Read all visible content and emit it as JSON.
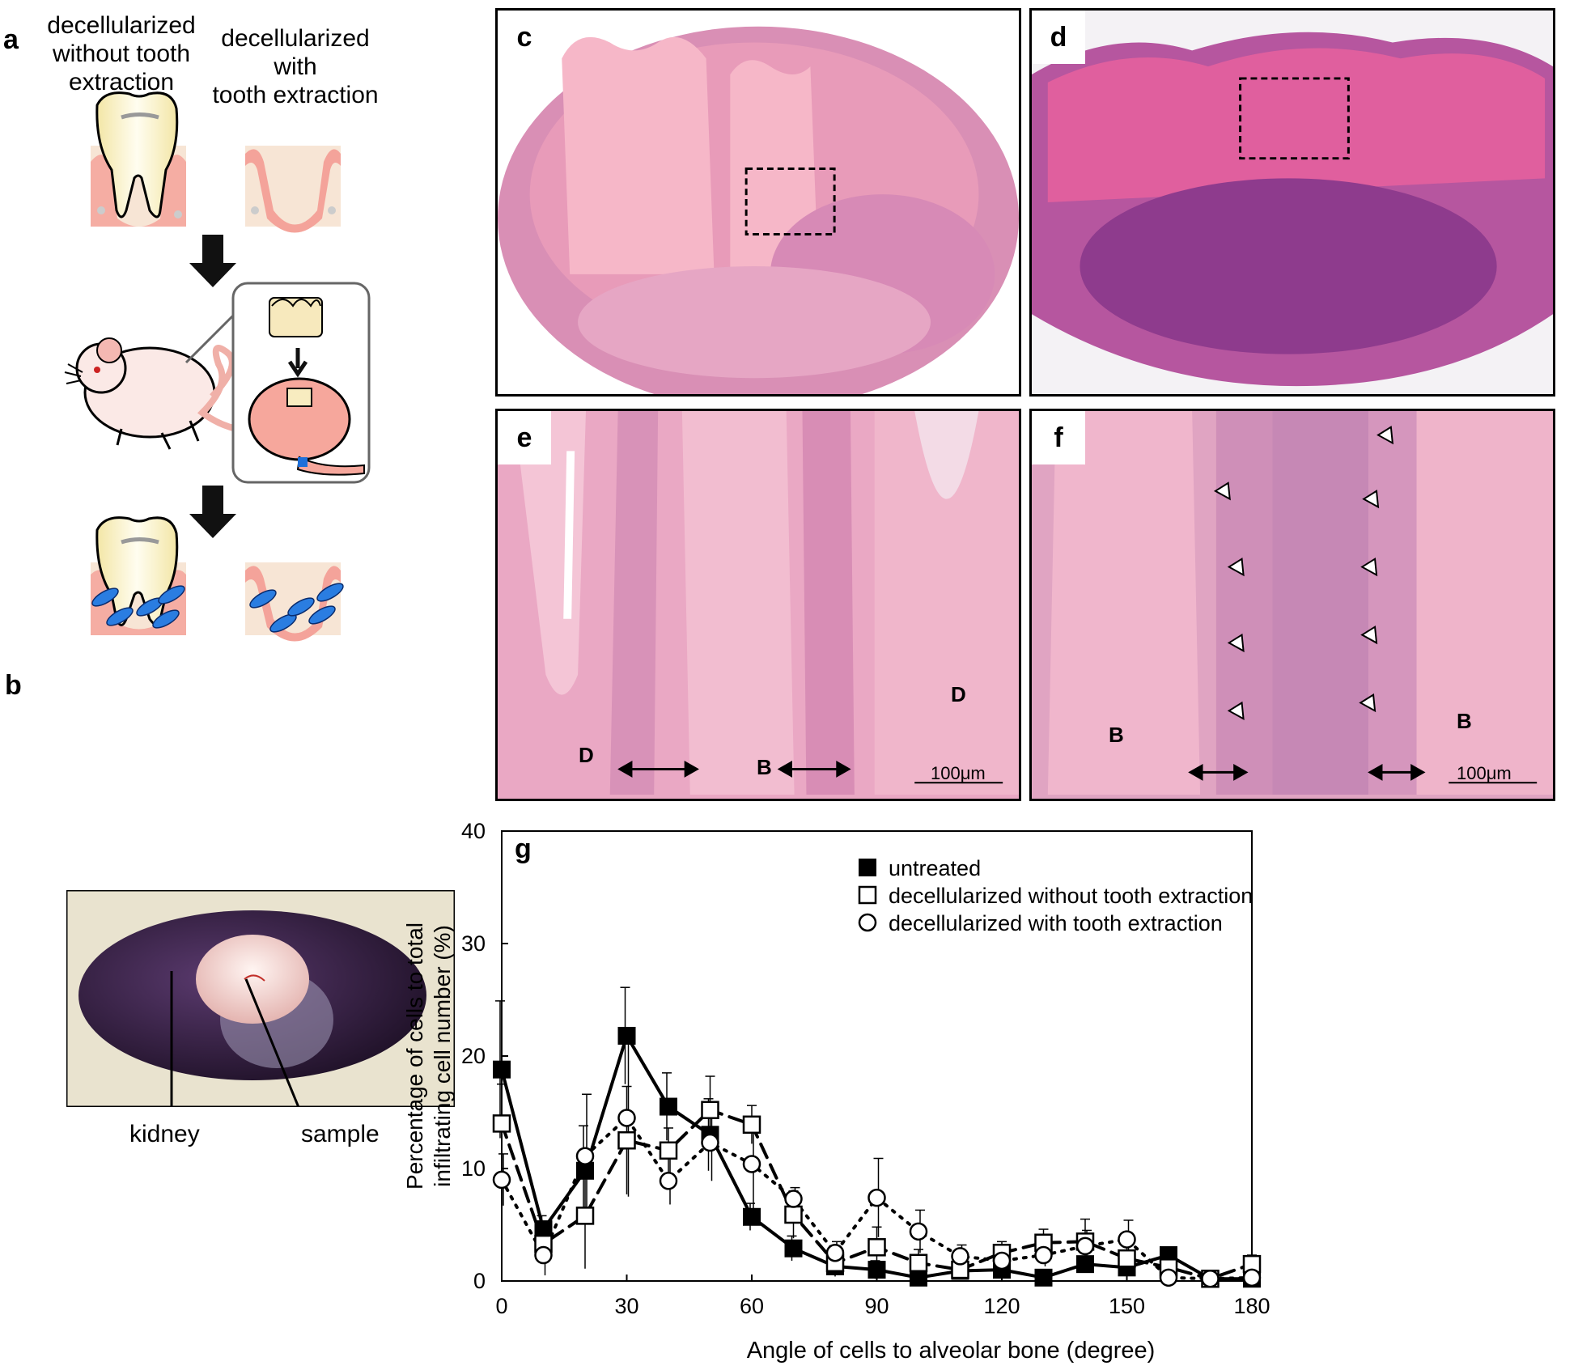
{
  "panel_a": {
    "letter": "a",
    "header_left_lines": [
      "decellularized",
      "without tooth",
      "extraction"
    ],
    "header_right_lines": [
      "decellularized with",
      "tooth extraction"
    ]
  },
  "panel_b": {
    "letter": "b",
    "label_kidney": "kidney",
    "label_sample": "sample"
  },
  "panel_c": {
    "letter": "c"
  },
  "panel_d": {
    "letter": "d"
  },
  "panel_e": {
    "letter": "e",
    "labels": {
      "d1": "D",
      "d2": "D",
      "b": "B"
    },
    "scale": "100μm"
  },
  "panel_f": {
    "letter": "f",
    "labels": {
      "b1": "B",
      "b2": "B"
    },
    "scale": "100μm"
  },
  "panel_g": {
    "letter": "g",
    "chart_data": {
      "type": "line",
      "xlabel": "Angle of cells to alveolar bone (degree)",
      "ylabel_lines": [
        "Percentage of cells to total",
        "infiltrating cell number (%)"
      ],
      "xlim": [
        0,
        180
      ],
      "ylim": [
        0,
        40
      ],
      "xticks": [
        0,
        30,
        60,
        90,
        120,
        150,
        180
      ],
      "yticks": [
        0,
        10,
        20,
        30,
        40
      ],
      "x": [
        0,
        10,
        20,
        30,
        40,
        50,
        60,
        70,
        80,
        90,
        100,
        110,
        120,
        130,
        140,
        150,
        160,
        170,
        180
      ],
      "legend_position": "top-right",
      "series": [
        {
          "name": "untreated",
          "marker": "filled-square",
          "line_style": "solid",
          "values": [
            18.8,
            4.6,
            9.8,
            21.8,
            15.5,
            13.0,
            5.7,
            2.9,
            1.3,
            1.0,
            0.3,
            0.9,
            1.0,
            0.3,
            1.5,
            1.2,
            2.3,
            0.2,
            0.2
          ],
          "errors": [
            6.1,
            1.2,
            4.0,
            4.3,
            3.0,
            3.2,
            1.2,
            1.1,
            0.8,
            0.8,
            0.3,
            0.6,
            0.7,
            0.3,
            0.7,
            0.6,
            0.6,
            0.2,
            0.2
          ]
        },
        {
          "name": "decellularized without tooth extraction",
          "marker": "open-square",
          "line_style": "dashed",
          "values": [
            14.0,
            3.3,
            5.8,
            12.5,
            11.6,
            15.2,
            13.9,
            5.9,
            1.6,
            3.0,
            1.6,
            1.0,
            2.5,
            3.4,
            3.5,
            2.0,
            1.2,
            0.2,
            1.5
          ],
          "errors": [
            3.5,
            1.5,
            4.7,
            4.8,
            2.0,
            3.0,
            1.7,
            2.1,
            1.2,
            1.8,
            1.2,
            0.6,
            1.0,
            1.2,
            2.0,
            1.5,
            0.8,
            0.2,
            0.8
          ]
        },
        {
          "name": "decellularized with tooth extraction",
          "marker": "open-circle",
          "line_style": "dotted",
          "values": [
            9.0,
            2.3,
            11.1,
            14.5,
            8.9,
            12.3,
            10.4,
            7.3,
            2.5,
            7.4,
            4.4,
            2.2,
            1.8,
            2.3,
            3.1,
            3.7,
            0.3,
            0.2,
            0.3
          ],
          "errors": [
            2.3,
            1.8,
            5.5,
            7.0,
            2.1,
            3.4,
            4.0,
            1.0,
            1.0,
            3.5,
            1.9,
            1.0,
            1.0,
            1.0,
            1.4,
            1.7,
            0.3,
            0.2,
            0.2
          ]
        }
      ]
    }
  }
}
